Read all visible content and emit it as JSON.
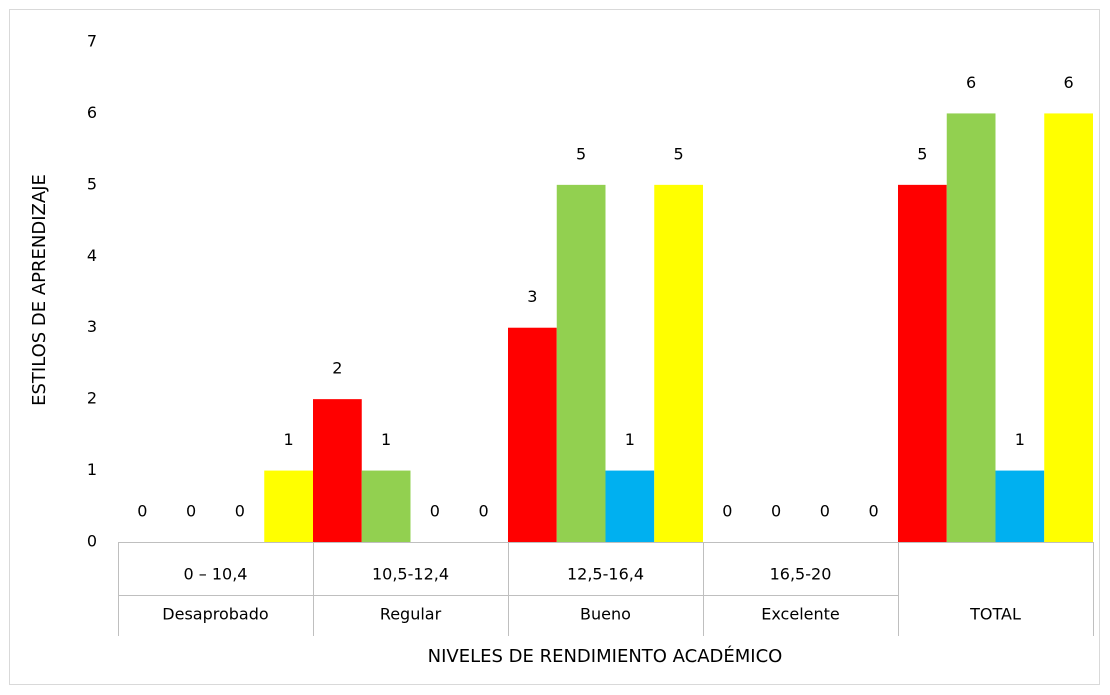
{
  "chart_data": {
    "type": "bar",
    "y_label": "ESTILOS DE APRENDIZAJE",
    "x_label": "NIVELES DE RENDIMIENTO ACADÉMICO",
    "categories": [
      [
        "0 – 10,4",
        "Desaprobado"
      ],
      [
        "10,5-12,4",
        "Regular"
      ],
      [
        "12,5-16,4",
        "Bueno"
      ],
      [
        "16,5-20",
        "Excelente"
      ],
      [
        null,
        "TOTAL"
      ]
    ],
    "series": [
      {
        "color": "#ff0000",
        "values": [
          0,
          2,
          3,
          0,
          5
        ]
      },
      {
        "color": "#92d050",
        "values": [
          0,
          1,
          5,
          0,
          6
        ]
      },
      {
        "color": "#00b0f0",
        "values": [
          0,
          0,
          1,
          0,
          1
        ]
      },
      {
        "color": "#ffff00",
        "values": [
          1,
          0,
          5,
          0,
          6
        ]
      }
    ],
    "ylim": [
      0,
      7
    ],
    "yticks": [
      0,
      1,
      2,
      3,
      4,
      5,
      6,
      7
    ],
    "grid": false
  }
}
